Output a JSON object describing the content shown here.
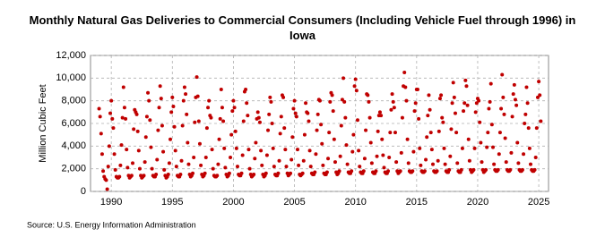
{
  "chart_data": {
    "type": "scatter",
    "title": "Monthly Natural Gas Deliveries to Commercial Consumers (Including Vehicle Fuel through 1996) in Iowa",
    "y_label": "Million Cubic Feet",
    "source": "Source: U.S. Energy Information Administration",
    "xlim": [
      1988.3,
      2025.8
    ],
    "xticks": [
      1990,
      1995,
      2000,
      2005,
      2010,
      2015,
      2020,
      2025
    ],
    "ylim": [
      0,
      12000
    ],
    "yticks": [
      0,
      {
        "value": 2000,
        "label": "2,000"
      },
      {
        "value": 4000,
        "label": "4,000"
      },
      {
        "value": 6000,
        "label": "6,000"
      },
      {
        "value": 8000,
        "label": "8,000"
      },
      {
        "value": 10000,
        "label": "10,000"
      },
      {
        "value": 12000,
        "label": "12,000"
      }
    ],
    "grid": true,
    "color": "#c00000",
    "x": [
      1989,
      1989.083,
      1989.167,
      1989.25,
      1989.333,
      1989.417,
      1989.5,
      1989.583,
      1989.667,
      1989.75,
      1989.833,
      1989.917,
      1990,
      1990.083,
      1990.167,
      1990.25,
      1990.333,
      1990.417,
      1990.5,
      1990.583,
      1990.667,
      1990.75,
      1990.833,
      1990.917,
      1991,
      1991.083,
      1991.167,
      1991.25,
      1991.333,
      1991.417,
      1991.5,
      1991.583,
      1991.667,
      1991.75,
      1991.833,
      1991.917,
      1992,
      1992.083,
      1992.167,
      1992.25,
      1992.333,
      1992.417,
      1992.5,
      1992.583,
      1992.667,
      1992.75,
      1992.833,
      1992.917,
      1993,
      1993.083,
      1993.167,
      1993.25,
      1993.333,
      1993.417,
      1993.5,
      1993.583,
      1993.667,
      1993.75,
      1993.833,
      1993.917,
      1994,
      1994.083,
      1994.167,
      1994.25,
      1994.333,
      1994.417,
      1994.5,
      1994.583,
      1994.667,
      1994.75,
      1994.833,
      1994.917,
      1995,
      1995.083,
      1995.167,
      1995.25,
      1995.333,
      1995.417,
      1995.5,
      1995.583,
      1995.667,
      1995.75,
      1995.833,
      1995.917,
      1996,
      1996.083,
      1996.167,
      1996.25,
      1996.333,
      1996.417,
      1996.5,
      1996.583,
      1996.667,
      1996.75,
      1996.833,
      1996.917,
      1997,
      1997.083,
      1997.167,
      1997.25,
      1997.333,
      1997.417,
      1997.5,
      1997.583,
      1997.667,
      1997.75,
      1997.833,
      1997.917,
      1998,
      1998.083,
      1998.167,
      1998.25,
      1998.333,
      1998.417,
      1998.5,
      1998.583,
      1998.667,
      1998.75,
      1998.833,
      1998.917,
      1999,
      1999.083,
      1999.167,
      1999.25,
      1999.333,
      1999.417,
      1999.5,
      1999.583,
      1999.667,
      1999.75,
      1999.833,
      1999.917,
      2000,
      2000.083,
      2000.167,
      2000.25,
      2000.333,
      2000.417,
      2000.5,
      2000.583,
      2000.667,
      2000.75,
      2000.833,
      2000.917,
      2001,
      2001.083,
      2001.167,
      2001.25,
      2001.333,
      2001.417,
      2001.5,
      2001.583,
      2001.667,
      2001.75,
      2001.833,
      2001.917,
      2002,
      2002.083,
      2002.167,
      2002.25,
      2002.333,
      2002.417,
      2002.5,
      2002.583,
      2002.667,
      2002.75,
      2002.833,
      2002.917,
      2003,
      2003.083,
      2003.167,
      2003.25,
      2003.333,
      2003.417,
      2003.5,
      2003.583,
      2003.667,
      2003.75,
      2003.833,
      2003.917,
      2004,
      2004.083,
      2004.167,
      2004.25,
      2004.333,
      2004.417,
      2004.5,
      2004.583,
      2004.667,
      2004.75,
      2004.833,
      2004.917,
      2005,
      2005.083,
      2005.167,
      2005.25,
      2005.333,
      2005.417,
      2005.5,
      2005.583,
      2005.667,
      2005.75,
      2005.833,
      2005.917,
      2006,
      2006.083,
      2006.167,
      2006.25,
      2006.333,
      2006.417,
      2006.5,
      2006.583,
      2006.667,
      2006.75,
      2006.833,
      2006.917,
      2007,
      2007.083,
      2007.167,
      2007.25,
      2007.333,
      2007.417,
      2007.5,
      2007.583,
      2007.667,
      2007.75,
      2007.833,
      2007.917,
      2008,
      2008.083,
      2008.167,
      2008.25,
      2008.333,
      2008.417,
      2008.5,
      2008.583,
      2008.667,
      2008.75,
      2008.833,
      2008.917,
      2009,
      2009.083,
      2009.167,
      2009.25,
      2009.333,
      2009.417,
      2009.5,
      2009.583,
      2009.667,
      2009.75,
      2009.833,
      2009.917,
      2010,
      2010.083,
      2010.167,
      2010.25,
      2010.333,
      2010.417,
      2010.5,
      2010.583,
      2010.667,
      2010.75,
      2010.833,
      2010.917,
      2011,
      2011.083,
      2011.167,
      2011.25,
      2011.333,
      2011.417,
      2011.5,
      2011.583,
      2011.667,
      2011.75,
      2011.833,
      2011.917,
      2012,
      2012.083,
      2012.167,
      2012.25,
      2012.333,
      2012.417,
      2012.5,
      2012.583,
      2012.667,
      2012.75,
      2012.833,
      2012.917,
      2013,
      2013.083,
      2013.167,
      2013.25,
      2013.333,
      2013.417,
      2013.5,
      2013.583,
      2013.667,
      2013.75,
      2013.833,
      2013.917,
      2014,
      2014.083,
      2014.167,
      2014.25,
      2014.333,
      2014.417,
      2014.5,
      2014.583,
      2014.667,
      2014.75,
      2014.833,
      2014.917,
      2015,
      2015.083,
      2015.167,
      2015.25,
      2015.333,
      2015.417,
      2015.5,
      2015.583,
      2015.667,
      2015.75,
      2015.833,
      2015.917,
      2016,
      2016.083,
      2016.167,
      2016.25,
      2016.333,
      2016.417,
      2016.5,
      2016.583,
      2016.667,
      2016.75,
      2016.833,
      2016.917,
      2017,
      2017.083,
      2017.167,
      2017.25,
      2017.333,
      2017.417,
      2017.5,
      2017.583,
      2017.667,
      2017.75,
      2017.833,
      2017.917,
      2018,
      2018.083,
      2018.167,
      2018.25,
      2018.333,
      2018.417,
      2018.5,
      2018.583,
      2018.667,
      2018.75,
      2018.833,
      2018.917,
      2019,
      2019.083,
      2019.167,
      2019.25,
      2019.333,
      2019.417,
      2019.5,
      2019.583,
      2019.667,
      2019.75,
      2019.833,
      2019.917,
      2020,
      2020.083,
      2020.167,
      2020.25,
      2020.333,
      2020.417,
      2020.5,
      2020.583,
      2020.667,
      2020.75,
      2020.833,
      2020.917,
      2021,
      2021.083,
      2021.167,
      2021.25,
      2021.333,
      2021.417,
      2021.5,
      2021.583,
      2021.667,
      2021.75,
      2021.833,
      2021.917,
      2022,
      2022.083,
      2022.167,
      2022.25,
      2022.333,
      2022.417,
      2022.5,
      2022.583,
      2022.667,
      2022.75,
      2022.833,
      2022.917,
      2023,
      2023.083,
      2023.167,
      2023.25,
      2023.333,
      2023.417,
      2023.5,
      2023.583,
      2023.667,
      2023.75,
      2023.833,
      2023.917,
      2024,
      2024.083,
      2024.167,
      2024.25,
      2024.333,
      2024.417,
      2024.5,
      2024.583,
      2024.667,
      2024.75,
      2024.833,
      2024.917,
      2025,
      2025.083,
      2025.167
    ],
    "values": [
      7300,
      6600,
      5100,
      3300,
      1800,
      1300,
      1100,
      1000,
      200,
      2200,
      4000,
      6900,
      8000,
      6400,
      5600,
      3300,
      1900,
      1300,
      1200,
      1200,
      1300,
      2300,
      4100,
      6500,
      9200,
      7400,
      6400,
      3700,
      2100,
      1400,
      1200,
      1300,
      1400,
      2500,
      5500,
      7200,
      7000,
      6800,
      5300,
      3600,
      2000,
      1400,
      1200,
      1300,
      1400,
      2600,
      4800,
      6600,
      8700,
      8000,
      6300,
      3900,
      2000,
      1400,
      1300,
      1300,
      1500,
      2800,
      5400,
      7400,
      9300,
      8200,
      5800,
      3500,
      1900,
      1400,
      1200,
      1300,
      1500,
      2500,
      4600,
      7000,
      8300,
      7500,
      5700,
      3600,
      2200,
      1400,
      1300,
      1300,
      1500,
      2700,
      5800,
      8000,
      9200,
      8600,
      6800,
      4300,
      2400,
      1500,
      1300,
      1400,
      1600,
      3000,
      6100,
      8300,
      10100,
      8400,
      6200,
      4200,
      2300,
      1500,
      1300,
      1400,
      1600,
      3000,
      5600,
      7400,
      8000,
      6700,
      6500,
      3700,
      2000,
      1400,
      1300,
      1300,
      1400,
      2400,
      4600,
      6400,
      9000,
      7400,
      6200,
      3800,
      2100,
      1500,
      1300,
      1400,
      1600,
      3000,
      5000,
      7100,
      8000,
      7400,
      5300,
      3800,
      2200,
      1500,
      1400,
      1400,
      1600,
      3200,
      6200,
      8800,
      9000,
      7800,
      6700,
      3700,
      2000,
      1500,
      1300,
      1400,
      1500,
      2900,
      4300,
      6400,
      7000,
      6500,
      6100,
      3600,
      2300,
      1500,
      1300,
      1400,
      1600,
      3200,
      5400,
      6800,
      8300,
      7900,
      6000,
      3800,
      2200,
      1500,
      1400,
      1400,
      1600,
      2700,
      5100,
      6600,
      8500,
      8300,
      5600,
      3700,
      2200,
      1600,
      1400,
      1500,
      1600,
      2800,
      4800,
      7300,
      8000,
      6900,
      6600,
      3700,
      2300,
      1500,
      1400,
      1500,
      1600,
      2700,
      5000,
      7800,
      7000,
      6900,
      6200,
      3600,
      2200,
      1600,
      1500,
      1500,
      1700,
      3300,
      5400,
      6800,
      8100,
      8000,
      5900,
      4200,
      2300,
      1600,
      1500,
      1500,
      1700,
      2900,
      5200,
      7900,
      8700,
      8500,
      7100,
      4600,
      2600,
      1700,
      1500,
      1600,
      1800,
      3100,
      5800,
      8100,
      10000,
      7900,
      6500,
      4100,
      2400,
      1700,
      1600,
      1600,
      1800,
      3500,
      5000,
      9300,
      9900,
      8900,
      6300,
      3600,
      2200,
      1700,
      1600,
      1600,
      1800,
      2900,
      5400,
      8600,
      8500,
      7900,
      6500,
      4300,
      2500,
      1700,
      1600,
      1600,
      1800,
      3100,
      5300,
      6700,
      7000,
      6700,
      4600,
      3200,
      2100,
      1700,
      1600,
      1600,
      1800,
      3000,
      5200,
      7200,
      8600,
      7900,
      7400,
      5200,
      2600,
      1800,
      1600,
      1700,
      1800,
      3400,
      6500,
      9300,
      10500,
      9200,
      8000,
      4600,
      2500,
      1800,
      1700,
      1700,
      1800,
      3500,
      7100,
      7800,
      9000,
      9000,
      6400,
      3800,
      2300,
      1800,
      1700,
      1700,
      1800,
      2800,
      4800,
      6700,
      8500,
      7200,
      5200,
      3700,
      2400,
      1800,
      1700,
      1700,
      1800,
      2700,
      5300,
      8200,
      8500,
      6500,
      6100,
      3800,
      2400,
      1800,
      1700,
      1700,
      1900,
      3100,
      5500,
      7800,
      9600,
      8300,
      6900,
      5200,
      2500,
      1800,
      1700,
      1700,
      1900,
      3800,
      7100,
      7800,
      9800,
      9300,
      7600,
      4600,
      2700,
      1900,
      1700,
      1800,
      1900,
      3800,
      7000,
      7800,
      8200,
      8000,
      6100,
      4300,
      2600,
      1900,
      1700,
      1800,
      1900,
      3900,
      5200,
      7300,
      7900,
      9500,
      5900,
      3900,
      2400,
      1900,
      1800,
      1800,
      1900,
      3300,
      5200,
      7300,
      10300,
      8300,
      6800,
      4700,
      2600,
      1900,
      1800,
      1800,
      1900,
      3400,
      6600,
      8600,
      9400,
      8100,
      7600,
      4300,
      2500,
      1900,
      1800,
      1800,
      1900,
      3300,
      6000,
      6800,
      9200,
      7800,
      5600,
      3800,
      2400,
      1900,
      1800,
      1800,
      1900,
      3000,
      5600,
      8300,
      9700,
      8500,
      6200
    ]
  }
}
